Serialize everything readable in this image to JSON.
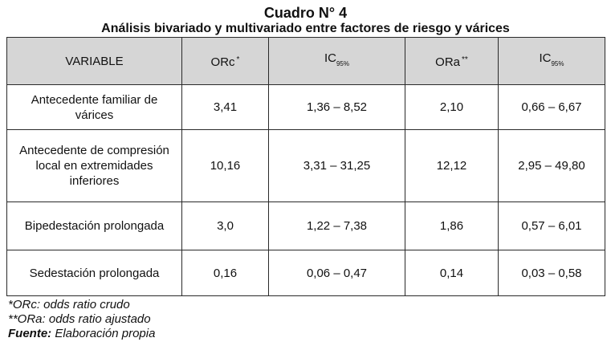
{
  "title": {
    "line1": "Cuadro N° 4",
    "line2": "Análisis bivariado y multivariado entre factores de riesgo y  várices"
  },
  "table": {
    "headers": {
      "variable": "VARIABLE",
      "orc": "ORc",
      "orc_mark": "*",
      "ic1": "IC",
      "ic1_sub": "95%",
      "ora": "ORa",
      "ora_mark": "**",
      "ic2": "IC",
      "ic2_sub": "95%"
    },
    "rows": [
      {
        "variable": "Antecedente familiar de várices",
        "orc": "3,41",
        "ic_c": "1,36 – 8,52",
        "ora": "2,10",
        "ic_a": "0,66 – 6,67"
      },
      {
        "variable": "Antecedente de compresión local en extremidades inferiores",
        "orc": "10,16",
        "ic_c": "3,31 – 31,25",
        "ora": "12,12",
        "ic_a": "2,95 – 49,80"
      },
      {
        "variable": "Bipedestación prolongada",
        "orc": "3,0",
        "ic_c": "1,22 – 7,38",
        "ora": "1,86",
        "ic_a": "0,57 – 6,01"
      },
      {
        "variable": "Sedestación prolongada",
        "orc": "0,16",
        "ic_c": "0,06 – 0,47",
        "ora": "0,14",
        "ic_a": "0,03 – 0,58"
      }
    ]
  },
  "footnotes": {
    "orc": "*ORc: odds ratio crudo",
    "ora": "**ORa: odds ratio ajustado",
    "source_label": "Fuente:",
    "source_text": "Elaboración propia"
  },
  "colors": {
    "header_bg": "#d6d6d6",
    "border": "#2a2a2a"
  }
}
